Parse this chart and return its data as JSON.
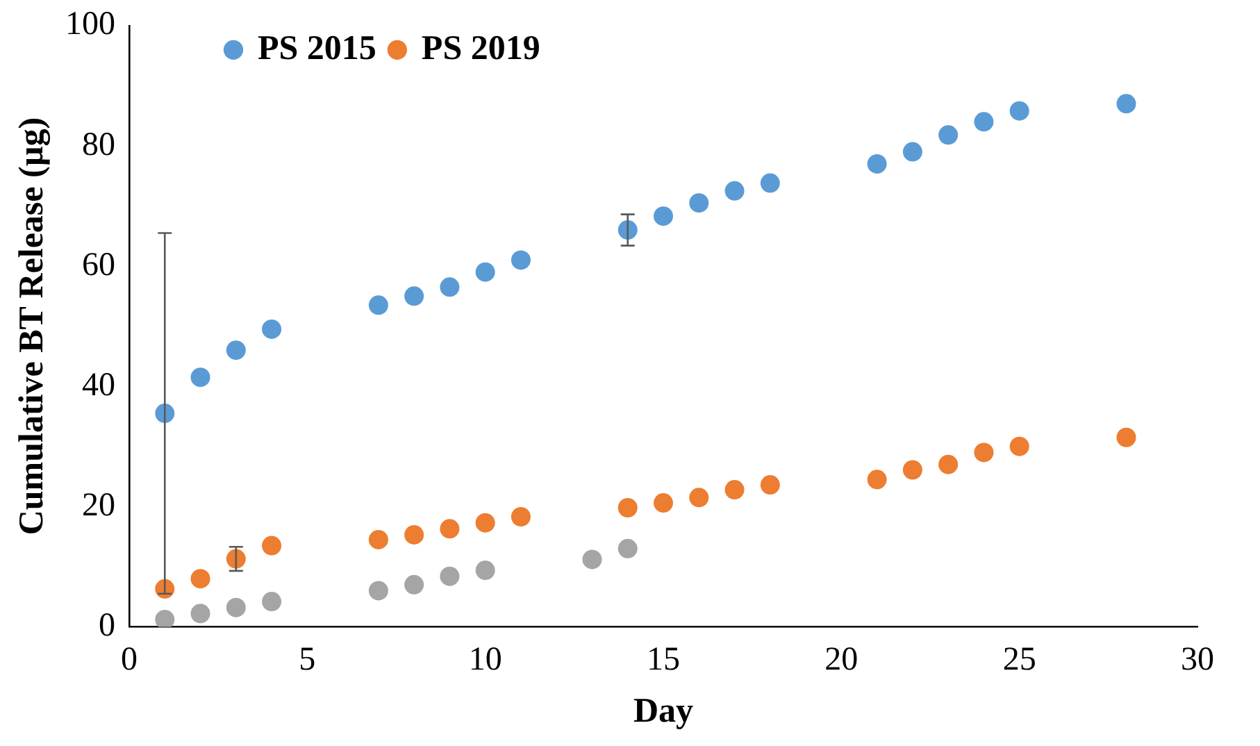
{
  "chart_data": {
    "type": "scatter",
    "xlabel": "Day",
    "ylabel": "Cumulative BT Release (µg)",
    "xlim": [
      0,
      30
    ],
    "xticks": [
      0,
      5,
      10,
      15,
      20,
      25,
      30
    ],
    "ylim": [
      0,
      100
    ],
    "yticks": [
      0,
      20,
      40,
      60,
      80,
      100
    ],
    "grid": false,
    "legend": "top",
    "marker": "circle",
    "series": [
      {
        "name": "PS 2015",
        "color": "#5b9bd5",
        "x": [
          1,
          2,
          3,
          4,
          7,
          8,
          9,
          10,
          11,
          14,
          15,
          16,
          17,
          18,
          21,
          22,
          23,
          24,
          25,
          28
        ],
        "values": [
          35.5,
          41.5,
          46,
          49.5,
          53.5,
          55,
          56.5,
          59,
          61,
          66,
          68.3,
          70.5,
          72.5,
          73.8,
          77,
          79,
          81.8,
          84,
          85.8,
          87
        ],
        "errors": [
          30,
          null,
          null,
          null,
          null,
          null,
          null,
          null,
          null,
          2.6,
          null,
          null,
          null,
          null,
          null,
          null,
          null,
          null,
          null,
          null
        ]
      },
      {
        "name": "PS 2019",
        "color": "#ed7d31",
        "x": [
          1,
          2,
          3,
          4,
          7,
          8,
          9,
          10,
          11,
          14,
          15,
          16,
          17,
          18,
          21,
          22,
          23,
          24,
          25,
          28
        ],
        "values": [
          6.3,
          8,
          11.3,
          13.5,
          14.5,
          15.3,
          16.3,
          17.3,
          18.3,
          19.8,
          20.6,
          21.5,
          22.8,
          23.6,
          24.5,
          26.1,
          27,
          29,
          30,
          31.5
        ],
        "errors": [
          null,
          null,
          2,
          null,
          null,
          null,
          null,
          null,
          null,
          null,
          null,
          null,
          null,
          null,
          null,
          null,
          null,
          null,
          null,
          null
        ]
      },
      {
        "color": "#a5a5a5",
        "x": [
          1,
          2,
          3,
          4,
          7,
          8,
          9,
          10,
          13,
          14
        ],
        "values": [
          1.2,
          2.2,
          3.2,
          4.2,
          6,
          7,
          8.4,
          9.4,
          11.2,
          13
        ]
      }
    ]
  }
}
